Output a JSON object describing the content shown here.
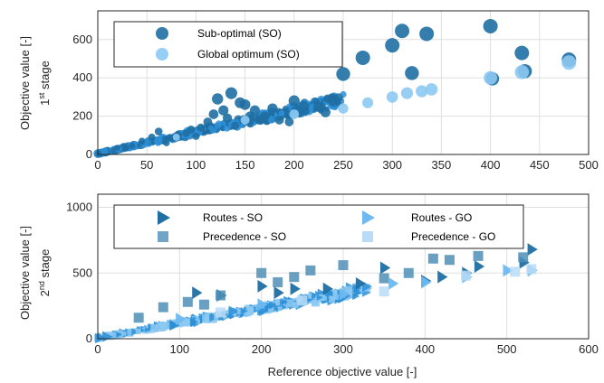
{
  "colors": {
    "so": "#1f6fa3",
    "go": "#8cc9f2",
    "dense": "#2d8fd6",
    "axis": "#262626",
    "grid": "#dfdfdf"
  },
  "chart_data": [
    {
      "type": "scatter",
      "xlabel": "",
      "ylabel_main": "Objective value [-]",
      "ylabel_sub_pre": "1",
      "ylabel_sub_sup": "st",
      "ylabel_sub_post": " stage",
      "xlim": [
        0,
        500
      ],
      "ylim": [
        0,
        750
      ],
      "xticks": [
        "0",
        "50",
        "100",
        "150",
        "200",
        "250",
        "300",
        "350",
        "400",
        "450",
        "500"
      ],
      "yticks": [
        "0",
        "200",
        "400",
        "600"
      ],
      "grid": true,
      "legend_position": "top-left",
      "series": [
        {
          "name": "Sub-optimal (SO)",
          "marker": "circle",
          "points": [
            [
              20,
              35
            ],
            [
              35,
              45
            ],
            [
              45,
              70
            ],
            [
              55,
              90
            ],
            [
              62,
              120
            ],
            [
              70,
              60
            ],
            [
              80,
              85
            ],
            [
              90,
              110
            ],
            [
              95,
              130
            ],
            [
              100,
              95
            ],
            [
              105,
              140
            ],
            [
              112,
              170
            ],
            [
              118,
              210
            ],
            [
              122,
              290
            ],
            [
              128,
              230
            ],
            [
              132,
              190
            ],
            [
              136,
              320
            ],
            [
              140,
              150
            ],
            [
              145,
              270
            ],
            [
              150,
              260
            ],
            [
              155,
              200
            ],
            [
              160,
              230
            ],
            [
              165,
              180
            ],
            [
              170,
              200
            ],
            [
              178,
              240
            ],
            [
              185,
              180
            ],
            [
              195,
              170
            ],
            [
              200,
              280
            ],
            [
              210,
              250
            ],
            [
              225,
              250
            ],
            [
              232,
              220
            ],
            [
              240,
              280
            ],
            [
              250,
              420
            ],
            [
              270,
              505
            ],
            [
              300,
              570
            ],
            [
              310,
              645
            ],
            [
              320,
              425
            ],
            [
              335,
              630
            ],
            [
              400,
              670
            ],
            [
              402,
              395
            ],
            [
              432,
              530
            ],
            [
              435,
              435
            ],
            [
              480,
              495
            ]
          ]
        },
        {
          "name": "Global optimum (SO)",
          "marker": "circle",
          "points": [
            [
              80,
              90
            ],
            [
              150,
              180
            ],
            [
              200,
              210
            ],
            [
              250,
              240
            ],
            [
              275,
              270
            ],
            [
              300,
              300
            ],
            [
              315,
              320
            ],
            [
              330,
              330
            ],
            [
              340,
              340
            ],
            [
              400,
              400
            ],
            [
              432,
              430
            ],
            [
              480,
              480
            ]
          ]
        }
      ],
      "band_max": 250
    },
    {
      "type": "scatter",
      "xlabel": "Reference objective value [-]",
      "ylabel_main": "Objective value [-]",
      "ylabel_sub_pre": "2",
      "ylabel_sub_sup": "nd",
      "ylabel_sub_post": " stage",
      "xlim": [
        0,
        600
      ],
      "ylim": [
        0,
        1100
      ],
      "xticks": [
        "0",
        "100",
        "200",
        "300",
        "400",
        "500",
        "600"
      ],
      "yticks": [
        "0",
        "500",
        "1000"
      ],
      "grid": true,
      "legend_position": "top",
      "series": [
        {
          "name": "Routes - SO",
          "marker": "triangle-right",
          "points": [
            [
              120,
              350
            ],
            [
              150,
              330
            ],
            [
              200,
              400
            ],
            [
              220,
              350
            ],
            [
              240,
              380
            ],
            [
              280,
              380
            ],
            [
              320,
              420
            ],
            [
              350,
              540
            ],
            [
              400,
              440
            ],
            [
              420,
              470
            ],
            [
              450,
              500
            ],
            [
              465,
              550
            ],
            [
              520,
              580
            ],
            [
              530,
              680
            ]
          ]
        },
        {
          "name": "Precedence - SO",
          "marker": "square",
          "points": [
            [
              50,
              160
            ],
            [
              80,
              240
            ],
            [
              110,
              280
            ],
            [
              130,
              260
            ],
            [
              150,
              330
            ],
            [
              200,
              500
            ],
            [
              220,
              430
            ],
            [
              240,
              470
            ],
            [
              260,
              520
            ],
            [
              300,
              560
            ],
            [
              350,
              460
            ],
            [
              380,
              500
            ],
            [
              410,
              610
            ],
            [
              430,
              600
            ],
            [
              465,
              630
            ],
            [
              520,
              620
            ]
          ]
        },
        {
          "name": "Routes - GO",
          "marker": "triangle-right",
          "points": [
            [
              100,
              150
            ],
            [
              200,
              260
            ],
            [
              300,
              340
            ],
            [
              360,
              420
            ],
            [
              400,
              430
            ],
            [
              450,
              470
            ],
            [
              500,
              520
            ],
            [
              530,
              520
            ]
          ]
        },
        {
          "name": "Precedence - GO",
          "marker": "square",
          "points": [
            [
              150,
              200
            ],
            [
              250,
              290
            ],
            [
              350,
              360
            ],
            [
              450,
              480
            ],
            [
              510,
              510
            ],
            [
              530,
              530
            ]
          ]
        }
      ],
      "band_max": 330
    }
  ]
}
